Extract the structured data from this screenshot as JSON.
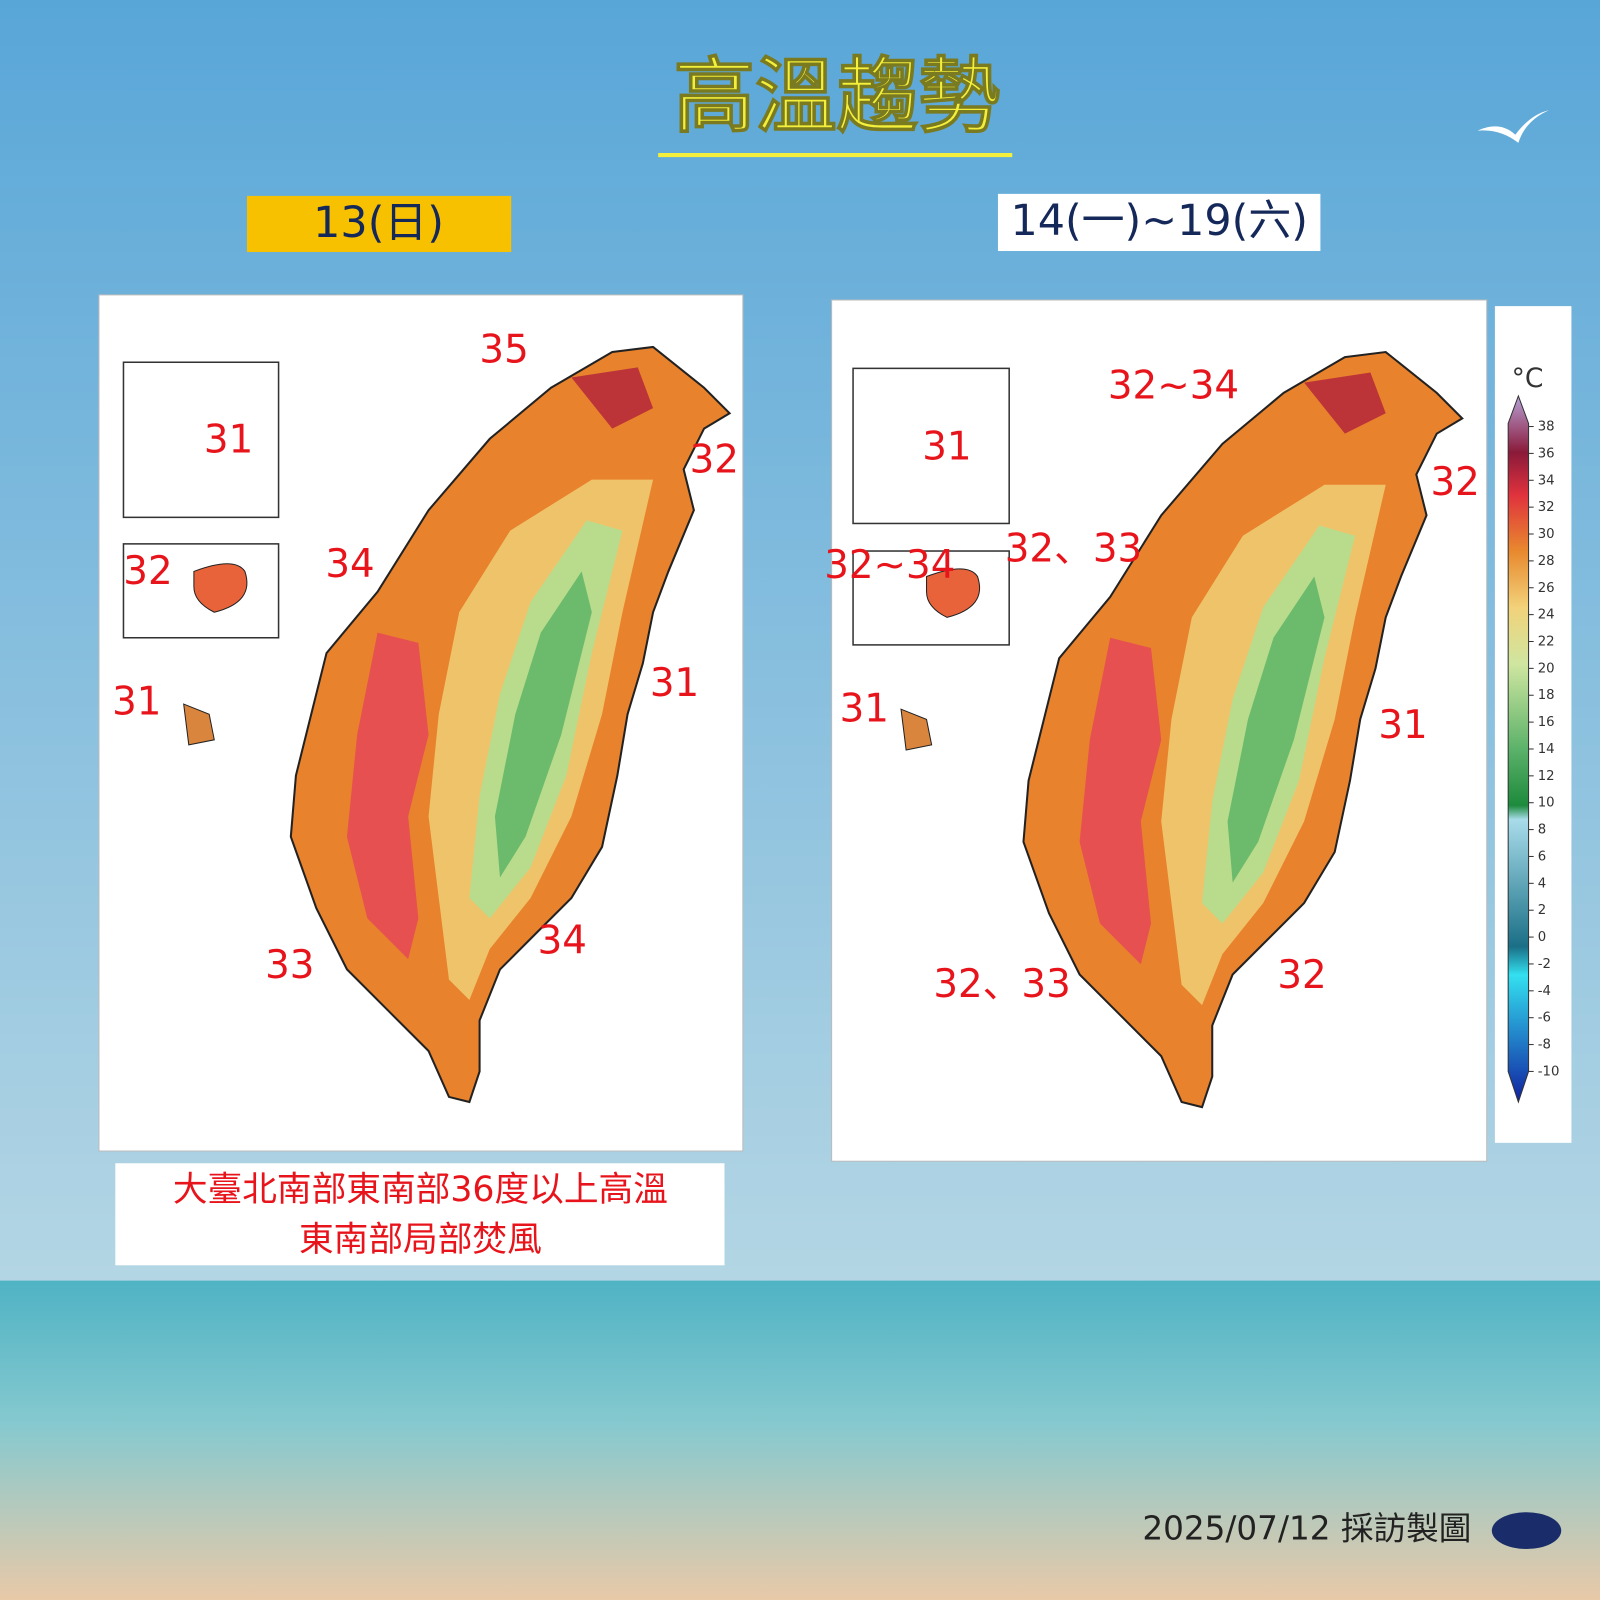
{
  "title": "高溫趨勢",
  "panels": [
    {
      "label": "13(日)",
      "map_labels": [
        "35",
        "31",
        "32",
        "34",
        "32",
        "31",
        "31",
        "33",
        "34"
      ],
      "caption": [
        "大臺北南部東南部36度以上高溫",
        "東南部局部焚風"
      ]
    },
    {
      "label": "14(一)~19(六)",
      "map_labels": [
        "32~34",
        "31",
        "32",
        "32、33",
        "32~34",
        "31",
        "31",
        "32、33",
        "32"
      ]
    }
  ],
  "colorbar": {
    "unit": "°C",
    "ticks": [
      38,
      36,
      34,
      32,
      30,
      28,
      26,
      24,
      22,
      20,
      18,
      16,
      14,
      12,
      10,
      8,
      6,
      4,
      2,
      0,
      -2,
      -4,
      -6,
      -8,
      -10
    ]
  },
  "footer": "2025/07/12 採訪製圖"
}
